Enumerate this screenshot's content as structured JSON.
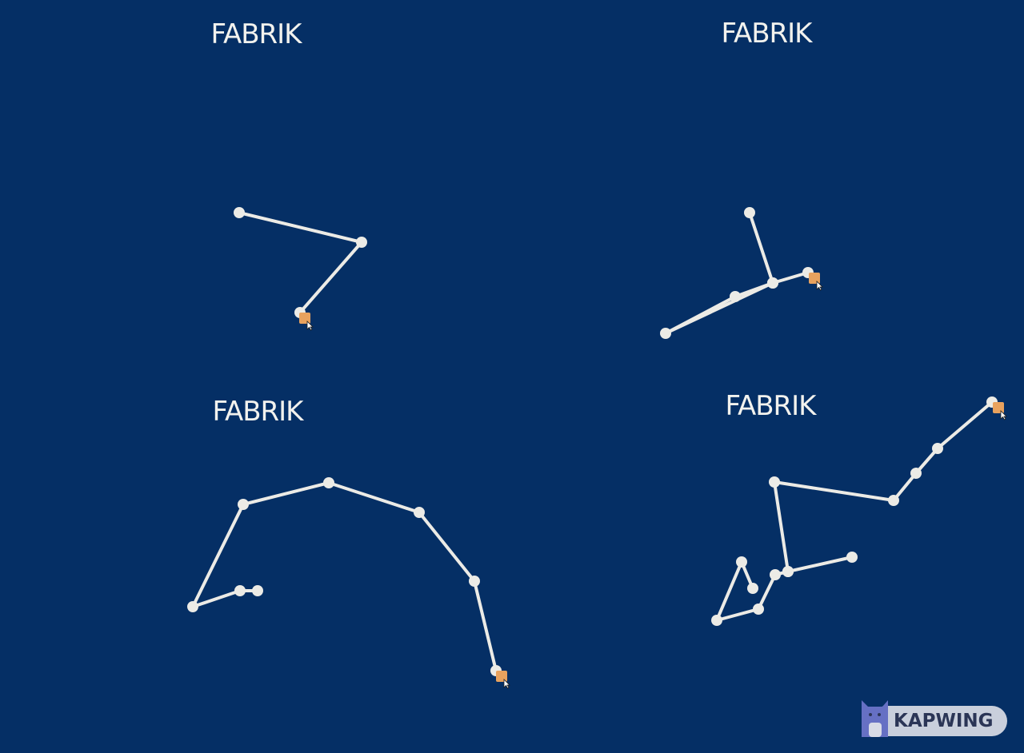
{
  "panels": [
    {
      "title": "FABRIK"
    },
    {
      "title": "FABRIK"
    },
    {
      "title": "FABRIK"
    },
    {
      "title": "FABRIK"
    }
  ],
  "watermark": {
    "label": "KAPWING"
  },
  "colors": {
    "background": "#052f65",
    "chain": "#ecebe6",
    "target": "#e8a25e"
  },
  "icons": {
    "target": "target-square-icon",
    "cursor": "mouse-pointer-icon",
    "logo": "kapwing-cat-logo-icon"
  }
}
